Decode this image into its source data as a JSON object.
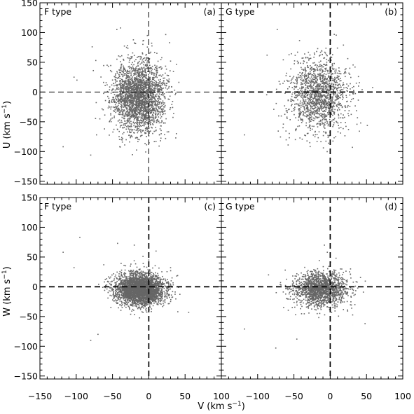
{
  "chart_data": [
    {
      "id": "a",
      "type": "scatter",
      "panel_tag": "(a)",
      "type_label": "F type",
      "x_axis": "V",
      "y_axis": "U",
      "xlim": [
        -150,
        100
      ],
      "ylim": [
        -155,
        150
      ],
      "reference_lines": {
        "x": 0,
        "y": 0
      },
      "cloud": {
        "count": 2600,
        "mean_x": -14,
        "mean_y": -7,
        "sd_x": 18,
        "sd_y": 30,
        "seed": 11
      },
      "outliers": [
        [
          -118,
          -92
        ],
        [
          -103,
          25
        ],
        [
          -99,
          20
        ],
        [
          -80,
          -106
        ],
        [
          -78,
          76
        ],
        [
          -73,
          53
        ],
        [
          -72,
          -72
        ],
        [
          -61,
          -62
        ],
        [
          -44,
          105
        ],
        [
          -40,
          -92
        ],
        [
          -8,
          86
        ],
        [
          -2,
          95
        ],
        [
          30,
          52
        ],
        [
          38,
          -70
        ]
      ]
    },
    {
      "id": "b",
      "type": "scatter",
      "panel_tag": "(b)",
      "type_label": "G type",
      "x_axis": "V",
      "y_axis": "U",
      "xlim": [
        -150,
        100
      ],
      "ylim": [
        -155,
        150
      ],
      "reference_lines": {
        "x": 0,
        "y": 0
      },
      "cloud": {
        "count": 1500,
        "mean_x": -17,
        "mean_y": -6,
        "sd_x": 20,
        "sd_y": 31,
        "seed": 23
      },
      "outliers": [
        [
          -118,
          -72
        ],
        [
          -87,
          62
        ],
        [
          -73,
          105
        ],
        [
          -65,
          -60
        ],
        [
          -58,
          -89
        ],
        [
          -45,
          67
        ],
        [
          27,
          40
        ],
        [
          39,
          10
        ],
        [
          42,
          -52
        ],
        [
          44,
          4
        ]
      ]
    },
    {
      "id": "c",
      "type": "scatter",
      "panel_tag": "(c)",
      "type_label": "F type",
      "x_axis": "V",
      "y_axis": "W",
      "xlim": [
        -150,
        100
      ],
      "ylim": [
        -155,
        150
      ],
      "reference_lines": {
        "x": 0,
        "y": 0
      },
      "cloud": {
        "count": 3400,
        "mean_x": -12,
        "mean_y": -5,
        "sd_x": 17,
        "sd_y": 13,
        "seed": 37
      },
      "outliers": [
        [
          -118,
          58
        ],
        [
          -103,
          32
        ],
        [
          -95,
          83
        ],
        [
          -80,
          -90
        ],
        [
          -70,
          -80
        ],
        [
          -62,
          37
        ],
        [
          -43,
          73
        ],
        [
          -20,
          70
        ],
        [
          -8,
          51
        ],
        [
          0,
          45
        ],
        [
          10,
          60
        ],
        [
          30,
          32
        ],
        [
          40,
          -42
        ],
        [
          55,
          -43
        ]
      ]
    },
    {
      "id": "d",
      "type": "scatter",
      "panel_tag": "(d)",
      "type_label": "G type",
      "x_axis": "V",
      "y_axis": "W",
      "xlim": [
        -150,
        100
      ],
      "ylim": [
        -155,
        150
      ],
      "reference_lines": {
        "x": 0,
        "y": 0
      },
      "cloud": {
        "count": 1700,
        "mean_x": -13,
        "mean_y": -4,
        "sd_x": 18,
        "sd_y": 14,
        "seed": 53
      },
      "outliers": [
        [
          -118,
          -71
        ],
        [
          -85,
          20
        ],
        [
          -75,
          -103
        ],
        [
          -62,
          28
        ],
        [
          -46,
          -88
        ],
        [
          -8,
          70
        ],
        [
          -4,
          58
        ],
        [
          8,
          48
        ],
        [
          28,
          30
        ],
        [
          34,
          -30
        ],
        [
          48,
          -62
        ]
      ]
    }
  ],
  "axes": {
    "x_label": "V (km s",
    "u_label": "U (km s",
    "w_label": "W (km s",
    "unit_superscript": "−1",
    "unit_close": ")",
    "x_ticks": [
      "−150",
      "−100",
      "−50",
      "0",
      "50",
      "100"
    ],
    "x_tick_values": [
      -150,
      -100,
      -50,
      0,
      50,
      100
    ],
    "y_ticks": [
      "−150",
      "−100",
      "−50",
      "0",
      "50",
      "100",
      "150"
    ],
    "y_tick_values": [
      -150,
      -100,
      -50,
      0,
      50,
      100,
      150
    ]
  },
  "colors": {
    "points": "#666666",
    "lines": "#000000"
  }
}
